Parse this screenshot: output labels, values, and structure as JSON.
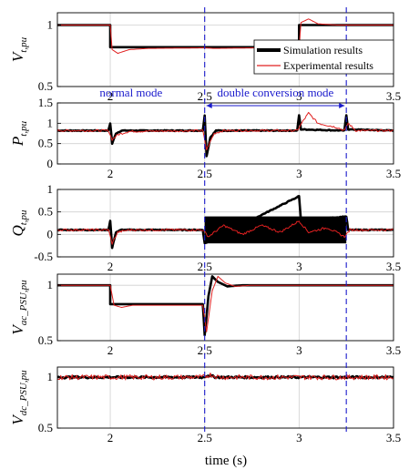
{
  "chart_data": {
    "type": "line",
    "xlabel": "time (s)",
    "x_ticks": [
      "2",
      "2.5",
      "3",
      "3.5"
    ],
    "xlim": [
      1.72,
      3.5
    ],
    "legend": {
      "placement": "bottom-right of first panel",
      "entries": [
        {
          "label": "Simulation results",
          "color": "#000000"
        },
        {
          "label": "Experimental results",
          "color": "#e02020"
        }
      ]
    },
    "markers": {
      "vlines": [
        2.5,
        3.25
      ],
      "annotations": [
        {
          "text": "normal mode",
          "x_from": 1.72,
          "x_to": 2.5
        },
        {
          "text": "double conversion mode",
          "x_from": 2.5,
          "x_to": 3.25
        }
      ]
    },
    "panels": [
      {
        "name": "Vt,pu",
        "ylabel": {
          "main": "V",
          "sub": "t,pu"
        },
        "ylim": [
          0.5,
          1.1
        ],
        "y_ticks": [
          "1",
          "0.5"
        ],
        "series": [
          {
            "name": "Simulation results",
            "points": [
              [
                1.72,
                1.0
              ],
              [
                2.0,
                1.0
              ],
              [
                2.0,
                0.82
              ],
              [
                3.0,
                0.82
              ],
              [
                3.0,
                1.0
              ],
              [
                3.5,
                1.0
              ]
            ]
          },
          {
            "name": "Experimental results",
            "points": [
              [
                1.72,
                1.0
              ],
              [
                2.0,
                1.0
              ],
              [
                2.01,
                0.8
              ],
              [
                2.04,
                0.77
              ],
              [
                2.1,
                0.8
              ],
              [
                2.2,
                0.81
              ],
              [
                2.5,
                0.815
              ],
              [
                2.55,
                0.81
              ],
              [
                3.0,
                0.82
              ],
              [
                3.01,
                1.02
              ],
              [
                3.05,
                1.05
              ],
              [
                3.1,
                1.01
              ],
              [
                3.2,
                1.0
              ],
              [
                3.5,
                1.0
              ]
            ]
          }
        ]
      },
      {
        "name": "Pt,pu",
        "ylabel": {
          "main": "P",
          "sub": "t,pu"
        },
        "ylim": [
          0,
          1.5
        ],
        "y_ticks": [
          "1.5",
          "1",
          "0.5",
          "0"
        ],
        "series": [
          {
            "name": "Simulation results",
            "points": [
              [
                1.72,
                0.82
              ],
              [
                1.99,
                0.82
              ],
              [
                2.0,
                1.0
              ],
              [
                2.01,
                0.5
              ],
              [
                2.03,
                0.75
              ],
              [
                2.06,
                0.82
              ],
              [
                2.49,
                0.82
              ],
              [
                2.5,
                1.2
              ],
              [
                2.51,
                0.2
              ],
              [
                2.53,
                0.65
              ],
              [
                2.56,
                0.82
              ],
              [
                2.99,
                0.82
              ],
              [
                3.0,
                1.2
              ],
              [
                3.01,
                0.85
              ],
              [
                3.24,
                0.82
              ],
              [
                3.25,
                1.2
              ],
              [
                3.26,
                0.85
              ],
              [
                3.5,
                0.82
              ]
            ]
          },
          {
            "name": "Experimental results",
            "points": [
              [
                1.72,
                0.82
              ],
              [
                1.99,
                0.82
              ],
              [
                2.01,
                0.6
              ],
              [
                2.04,
                0.72
              ],
              [
                2.1,
                0.8
              ],
              [
                2.49,
                0.82
              ],
              [
                2.51,
                0.35
              ],
              [
                2.55,
                0.75
              ],
              [
                2.6,
                0.82
              ],
              [
                2.99,
                0.82
              ],
              [
                3.02,
                1.05
              ],
              [
                3.05,
                1.25
              ],
              [
                3.1,
                1.0
              ],
              [
                3.2,
                0.9
              ],
              [
                3.24,
                0.82
              ],
              [
                3.26,
                1.0
              ],
              [
                3.3,
                0.82
              ],
              [
                3.5,
                0.82
              ]
            ]
          }
        ]
      },
      {
        "name": "Qt,pu",
        "ylabel": {
          "main": "Q",
          "sub": "t,pu"
        },
        "ylim": [
          -0.5,
          1.0
        ],
        "y_ticks": [
          "1",
          "0.5",
          "0",
          "-0.5"
        ],
        "series": [
          {
            "name": "Simulation results",
            "band": [
              [
                2.5,
                3.25
              ],
              [
                -0.2,
                0.4
              ]
            ],
            "points": [
              [
                1.72,
                0.1
              ],
              [
                1.99,
                0.1
              ],
              [
                2.0,
                0.3
              ],
              [
                2.01,
                -0.3
              ],
              [
                2.03,
                0.05
              ],
              [
                2.06,
                0.1
              ],
              [
                2.49,
                0.1
              ],
              [
                2.5,
                -0.2
              ],
              [
                3.0,
                0.85
              ],
              [
                3.01,
                0.3
              ],
              [
                3.25,
                0.4
              ],
              [
                3.26,
                0.1
              ],
              [
                3.5,
                0.1
              ]
            ]
          },
          {
            "name": "Experimental results",
            "points": [
              [
                1.72,
                0.1
              ],
              [
                1.99,
                0.1
              ],
              [
                2.01,
                -0.2
              ],
              [
                2.04,
                0.05
              ],
              [
                2.1,
                0.1
              ],
              [
                2.49,
                0.1
              ],
              [
                2.52,
                -0.05
              ],
              [
                2.6,
                0.2
              ],
              [
                2.7,
                0.0
              ],
              [
                2.8,
                0.2
              ],
              [
                2.9,
                0.05
              ],
              [
                3.0,
                0.3
              ],
              [
                3.05,
                0.05
              ],
              [
                3.15,
                0.15
              ],
              [
                3.24,
                -0.05
              ],
              [
                3.27,
                0.1
              ],
              [
                3.5,
                0.1
              ]
            ]
          }
        ]
      },
      {
        "name": "Vac_PSU,pu",
        "ylabel": {
          "main": "V",
          "sub": "ac_PSU,pu"
        },
        "ylim": [
          0.5,
          1.1
        ],
        "y_ticks": [
          "1",
          "0.5"
        ],
        "series": [
          {
            "name": "Simulation results",
            "points": [
              [
                1.72,
                1.0
              ],
              [
                2.0,
                1.0
              ],
              [
                2.0,
                0.83
              ],
              [
                2.49,
                0.83
              ],
              [
                2.5,
                0.55
              ],
              [
                2.52,
                0.9
              ],
              [
                2.54,
                1.08
              ],
              [
                2.57,
                1.03
              ],
              [
                2.62,
                0.99
              ],
              [
                2.7,
                1.0
              ],
              [
                3.5,
                1.0
              ]
            ]
          },
          {
            "name": "Experimental results",
            "points": [
              [
                1.72,
                1.0
              ],
              [
                2.0,
                1.0
              ],
              [
                2.02,
                0.82
              ],
              [
                2.06,
                0.8
              ],
              [
                2.12,
                0.82
              ],
              [
                2.49,
                0.82
              ],
              [
                2.51,
                0.58
              ],
              [
                2.54,
                0.95
              ],
              [
                2.57,
                1.08
              ],
              [
                2.61,
                1.02
              ],
              [
                2.66,
                0.99
              ],
              [
                2.75,
                1.0
              ],
              [
                3.5,
                1.0
              ]
            ]
          }
        ]
      },
      {
        "name": "Vdc_PSU,pu",
        "ylabel": {
          "main": "V",
          "sub": "dc_PSU,pu"
        },
        "ylim": [
          0.5,
          1.1
        ],
        "y_ticks": [
          "1",
          "0.5"
        ],
        "series": [
          {
            "name": "Simulation results",
            "points": [
              [
                1.72,
                1.0
              ],
              [
                2.49,
                1.0
              ],
              [
                2.52,
                1.02
              ],
              [
                2.56,
                1.0
              ],
              [
                3.5,
                1.0
              ]
            ]
          },
          {
            "name": "Experimental results",
            "points": [
              [
                1.72,
                1.0
              ],
              [
                2.49,
                1.0
              ],
              [
                2.53,
                1.025
              ],
              [
                2.58,
                1.0
              ],
              [
                3.5,
                1.0
              ]
            ]
          }
        ]
      }
    ]
  }
}
